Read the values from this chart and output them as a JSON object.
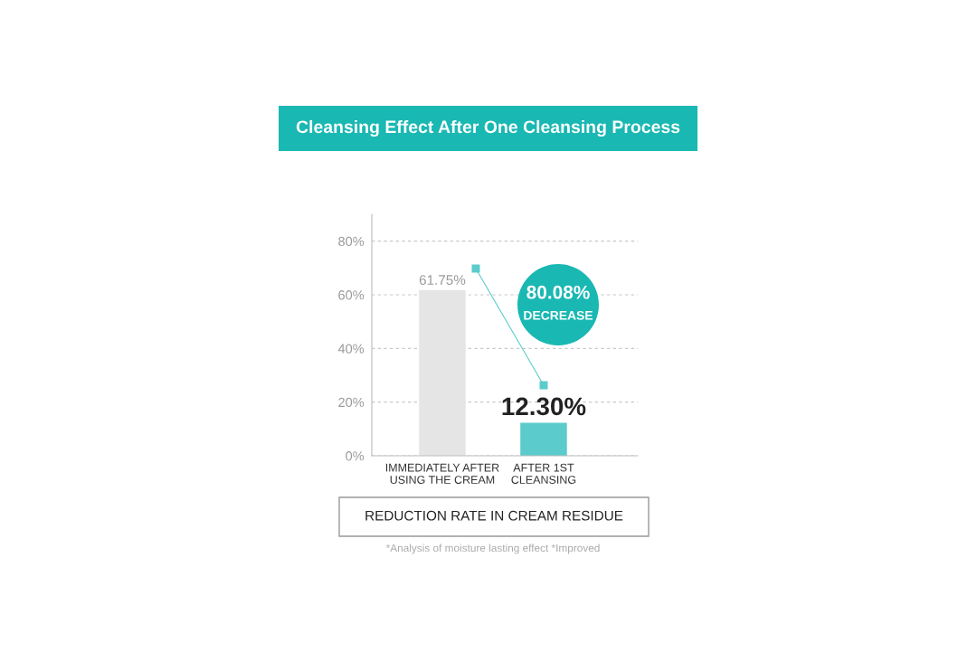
{
  "chart_data": {
    "type": "bar",
    "title": "Cleansing Effect After One Cleansing Process",
    "xlabel": "REDUCTION RATE IN CREAM RESIDUE",
    "categories": [
      "IMMEDIATELY AFTER\nUSING THE CREAM",
      "AFTER 1ST\nCLEANSING"
    ],
    "values": [
      61.75,
      12.3
    ],
    "colors": [
      "#e5e5e6",
      "#5ccbcb"
    ],
    "value_labels": [
      "61.75%",
      "12.30%"
    ],
    "ylim": [
      0,
      90
    ],
    "yticks": [
      {
        "value": 0,
        "label": "0%"
      },
      {
        "value": 20,
        "label": "20%"
      },
      {
        "value": 40,
        "label": "40%"
      },
      {
        "value": 60,
        "label": "60%"
      },
      {
        "value": 80,
        "label": "80%"
      }
    ],
    "grid": "y",
    "annotations": [
      "80.08%\nDECREASE",
      "*Analysis of moisture lasting effect *Improved"
    ]
  }
}
